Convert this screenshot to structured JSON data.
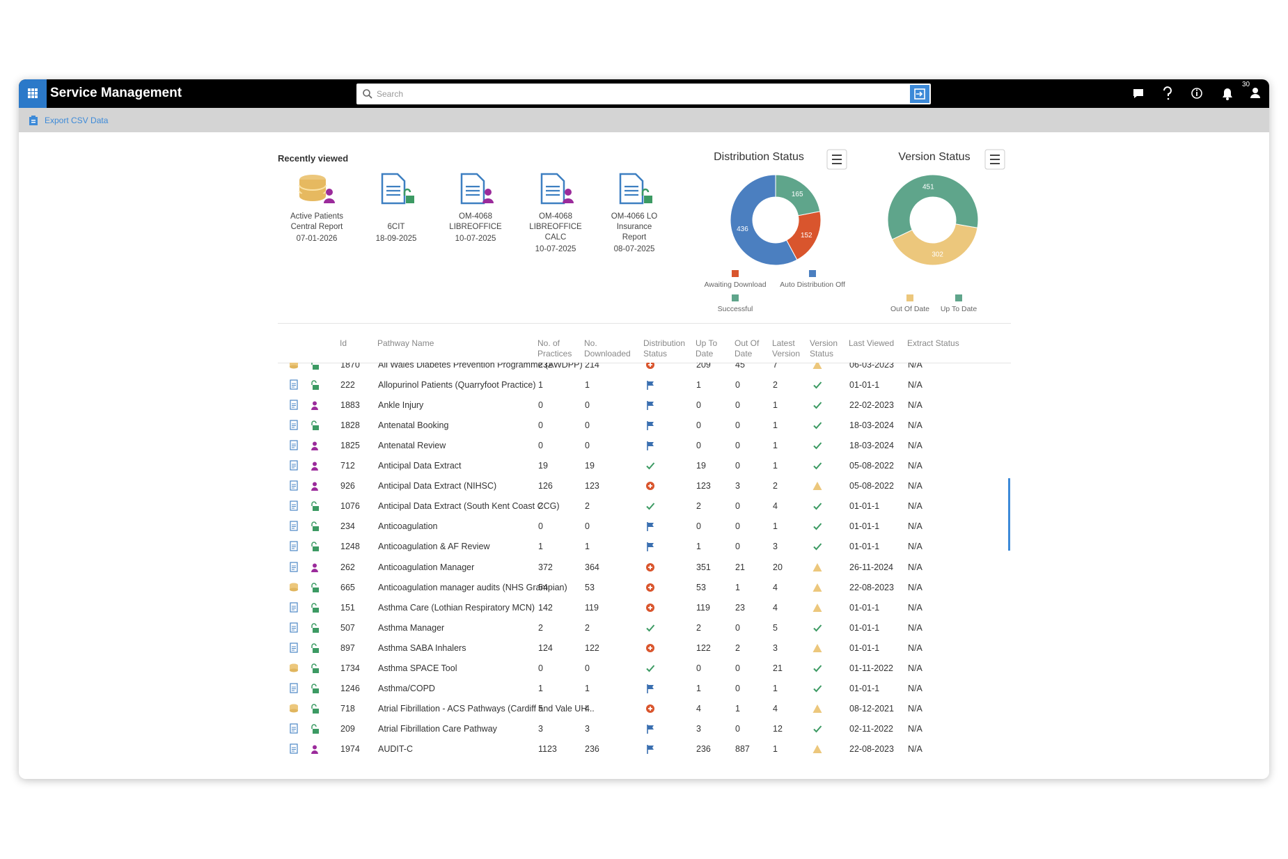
{
  "header": {
    "title": "Service Management",
    "search_placeholder": "Search",
    "notification_count": "30"
  },
  "toolbar": {
    "export": "Export CSV Data"
  },
  "recently_viewed": {
    "title": "Recently viewed",
    "items": [
      {
        "name": "Active Patients Central Report",
        "date": "07-01-2026"
      },
      {
        "name": "6CIT",
        "date": "18-09-2025"
      },
      {
        "name": "OM-4068 LIBREOFFICE",
        "date": "10-07-2025"
      },
      {
        "name": "OM-4068 LIBREOFFICE CALC",
        "date": "10-07-2025"
      },
      {
        "name": "OM-4066 LO Insurance Report",
        "date": "08-07-2025"
      }
    ]
  },
  "chart_data": [
    {
      "type": "pie",
      "title": "Distribution Status",
      "categories": [
        "Awaiting Download",
        "Auto Distribution Off",
        "Successful"
      ],
      "values": [
        152,
        436,
        165
      ],
      "colors": [
        "#d9552d",
        "#4b7fc0",
        "#5fa58b"
      ],
      "donut": true
    },
    {
      "type": "pie",
      "title": "Version Status",
      "categories": [
        "Out Of Date",
        "Up To Date"
      ],
      "values": [
        302,
        451
      ],
      "colors": [
        "#ecc77c",
        "#5fa58b"
      ],
      "donut": true
    }
  ],
  "table": {
    "columns": [
      "Id",
      "Pathway Name",
      "No. of Practices",
      "No. Downloaded",
      "Distribution Status",
      "Up To Date",
      "Out Of Date",
      "Latest Version",
      "Version Status",
      "Last Viewed",
      "Extract Status"
    ],
    "rows": [
      [
        "1870",
        "All Wales Diabetes Prevention Programme (AWDPP)",
        "232",
        "214",
        "209",
        "45",
        "7",
        "06-03-2023",
        "N/A"
      ],
      [
        "222",
        "Allopurinol Patients (Quarryfoot Practice)",
        "1",
        "1",
        "1",
        "0",
        "2",
        "01-01-1",
        "N/A"
      ],
      [
        "1883",
        "Ankle Injury",
        "0",
        "0",
        "0",
        "0",
        "1",
        "22-02-2023",
        "N/A"
      ],
      [
        "1828",
        "Antenatal Booking",
        "0",
        "0",
        "0",
        "0",
        "1",
        "18-03-2024",
        "N/A"
      ],
      [
        "1825",
        "Antenatal Review",
        "0",
        "0",
        "0",
        "0",
        "1",
        "18-03-2024",
        "N/A"
      ],
      [
        "712",
        "Anticipal Data Extract",
        "19",
        "19",
        "19",
        "0",
        "1",
        "05-08-2022",
        "N/A"
      ],
      [
        "926",
        "Anticipal Data Extract (NIHSC)",
        "126",
        "123",
        "123",
        "3",
        "2",
        "05-08-2022",
        "N/A"
      ],
      [
        "1076",
        "Anticipal Data Extract (South Kent Coast CCG)",
        "2",
        "2",
        "2",
        "0",
        "4",
        "01-01-1",
        "N/A"
      ],
      [
        "234",
        "Anticoagulation",
        "0",
        "0",
        "0",
        "0",
        "1",
        "01-01-1",
        "N/A"
      ],
      [
        "1248",
        "Anticoagulation & AF Review",
        "1",
        "1",
        "1",
        "0",
        "3",
        "01-01-1",
        "N/A"
      ],
      [
        "262",
        "Anticoagulation Manager",
        "372",
        "364",
        "351",
        "21",
        "20",
        "26-11-2024",
        "N/A"
      ],
      [
        "665",
        "Anticoagulation manager audits (NHS Grampian)",
        "54",
        "53",
        "53",
        "1",
        "4",
        "22-08-2023",
        "N/A"
      ],
      [
        "151",
        "Asthma Care (Lothian Respiratory MCN)",
        "142",
        "119",
        "119",
        "23",
        "4",
        "01-01-1",
        "N/A"
      ],
      [
        "507",
        "Asthma Manager",
        "2",
        "2",
        "2",
        "0",
        "5",
        "01-01-1",
        "N/A"
      ],
      [
        "897",
        "Asthma SABA Inhalers",
        "124",
        "122",
        "122",
        "2",
        "3",
        "01-01-1",
        "N/A"
      ],
      [
        "1734",
        "Asthma SPACE Tool",
        "0",
        "0",
        "0",
        "0",
        "21",
        "01-11-2022",
        "N/A"
      ],
      [
        "1246",
        "Asthma/COPD",
        "1",
        "1",
        "1",
        "0",
        "1",
        "01-01-1",
        "N/A"
      ],
      [
        "718",
        "Atrial Fibrillation - ACS Pathways (Cardiff and Vale UH...",
        "5",
        "4",
        "4",
        "1",
        "4",
        "08-12-2021",
        "N/A"
      ],
      [
        "209",
        "Atrial Fibrillation Care Pathway",
        "3",
        "3",
        "3",
        "0",
        "12",
        "02-11-2022",
        "N/A"
      ],
      [
        "1974",
        "AUDIT-C",
        "1123",
        "236",
        "236",
        "887",
        "1",
        "22-08-2023",
        "N/A"
      ]
    ]
  }
}
